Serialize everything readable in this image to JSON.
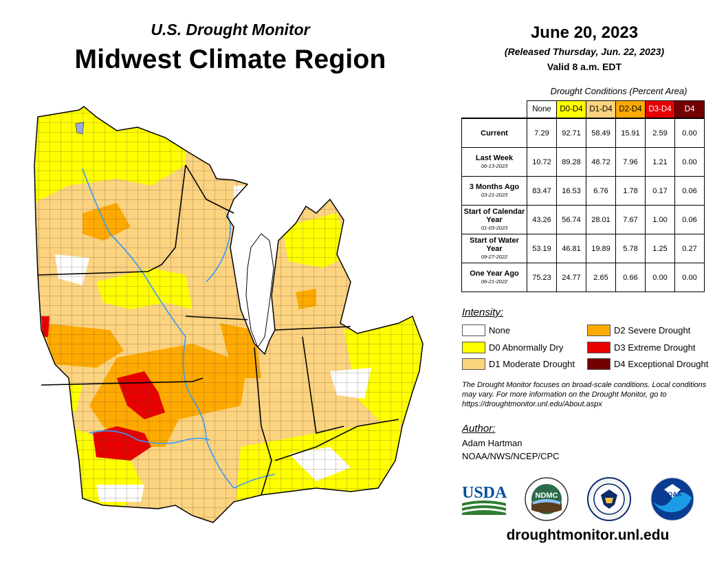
{
  "header": {
    "subtitle": "U.S. Drought Monitor",
    "title": "Midwest Climate Region",
    "date": "June 20, 2023",
    "released": "(Released Thursday, Jun. 22, 2023)",
    "valid": "Valid 8 a.m. EDT"
  },
  "stats": {
    "caption": "Drought Conditions (Percent Area)",
    "columns": [
      {
        "label": "None",
        "color": "#ffffff"
      },
      {
        "label": "D0-D4",
        "color": "#ffff00"
      },
      {
        "label": "D1-D4",
        "color": "#fcd37f"
      },
      {
        "label": "D2-D4",
        "color": "#ffaa00"
      },
      {
        "label": "D3-D4",
        "color": "#e60000",
        "text_color": "#ffffff"
      },
      {
        "label": "D4",
        "color": "#730000",
        "text_color": "#ffffff"
      }
    ],
    "rows": [
      {
        "label": "Current",
        "date": "",
        "values": [
          "7.29",
          "92.71",
          "58.49",
          "15.91",
          "2.59",
          "0.00"
        ]
      },
      {
        "label": "Last Week",
        "date": "06-13-2023",
        "values": [
          "10.72",
          "89.28",
          "48.72",
          "7.96",
          "1.21",
          "0.00"
        ]
      },
      {
        "label": "3 Months Ago",
        "date": "03-21-2023",
        "values": [
          "83.47",
          "16.53",
          "6.76",
          "1.78",
          "0.17",
          "0.06"
        ]
      },
      {
        "label": "Start of Calendar Year",
        "date": "01-03-2023",
        "values": [
          "43.26",
          "56.74",
          "28.01",
          "7.67",
          "1.00",
          "0.06"
        ]
      },
      {
        "label": "Start of Water Year",
        "date": "09-27-2022",
        "values": [
          "53.19",
          "46.81",
          "19.89",
          "5.78",
          "1.25",
          "0.27"
        ]
      },
      {
        "label": "One Year Ago",
        "date": "06-21-2022",
        "values": [
          "75.23",
          "24.77",
          "2.65",
          "0.66",
          "0.00",
          "0.00"
        ]
      }
    ]
  },
  "legend": {
    "heading": "Intensity:",
    "items": [
      {
        "label": "None",
        "color": "#ffffff"
      },
      {
        "label": "D0 Abnormally Dry",
        "color": "#ffff00"
      },
      {
        "label": "D1 Moderate Drought",
        "color": "#fcd37f"
      },
      {
        "label": "D2 Severe Drought",
        "color": "#ffaa00"
      },
      {
        "label": "D3 Extreme Drought",
        "color": "#e60000"
      },
      {
        "label": "D4 Exceptional Drought",
        "color": "#730000"
      }
    ]
  },
  "disclaimer": "The Drought Monitor focuses on broad-scale conditions. Local conditions may vary. For more information on the Drought Monitor, go to https://droughtmonitor.unl.edu/About.aspx",
  "author": {
    "heading": "Author:",
    "name": "Adam Hartman",
    "org": "NOAA/NWS/NCEP/CPC"
  },
  "logos": {
    "usda": "USDA",
    "ndmc": "NDMC",
    "noaa": "NOAA"
  },
  "website": "droughtmonitor.unl.edu",
  "colors": {
    "lake": "#ffffff",
    "river": "#3399ff",
    "county_line": "#5a4a3a"
  }
}
